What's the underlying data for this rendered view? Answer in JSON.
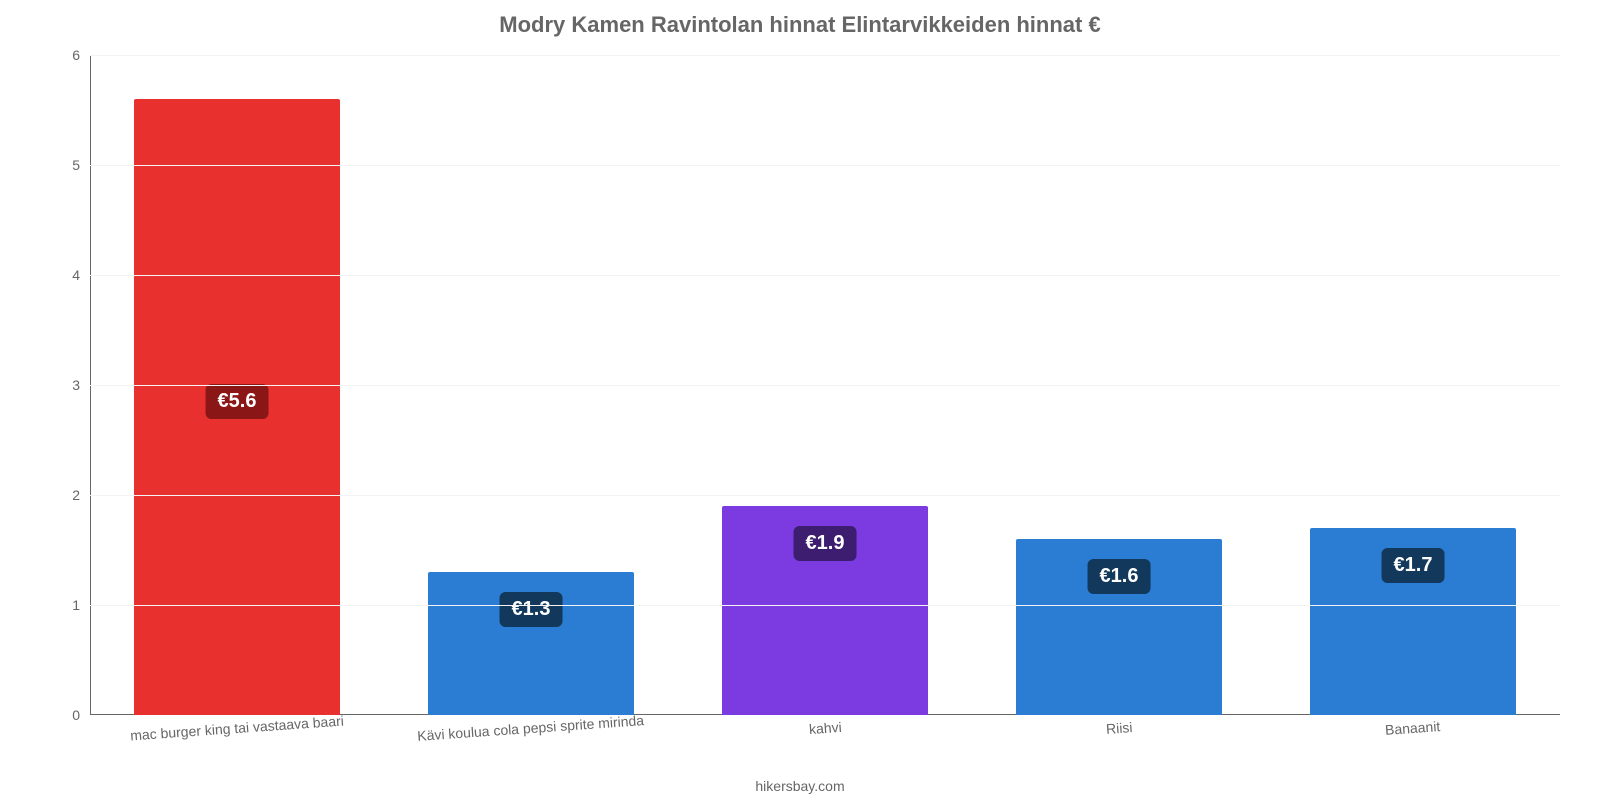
{
  "chart": {
    "type": "bar",
    "title": "Modry Kamen Ravintolan hinnat Elintarvikkeiden hinnat €",
    "title_fontsize": 22,
    "title_color": "#666666",
    "attribution": "hikersbay.com",
    "attribution_color": "#666666",
    "background_color": "#ffffff",
    "grid_color": "#f3f3f3",
    "axis_color": "#666666",
    "tick_color": "#666666",
    "ylim": [
      0,
      6
    ],
    "ytick_step": 1,
    "bar_width_pct": 70,
    "value_label_fontsize": 20,
    "value_label_bg": "#12385b",
    "value_label_bg_alt": "#8a1616",
    "x_label_color": "#666666",
    "categories": [
      "mac burger king tai vastaava baari",
      "Kävi koulua cola pepsi sprite mirinda",
      "kahvi",
      "Riisi",
      "Banaanit"
    ],
    "values": [
      5.6,
      1.3,
      1.9,
      1.6,
      1.7
    ],
    "value_labels": [
      "€5.6",
      "€1.3",
      "€1.9",
      "€1.6",
      "€1.7"
    ],
    "bar_colors": [
      "#e8302e",
      "#2b7cd3",
      "#7b3be0",
      "#2b7cd3",
      "#2b7cd3"
    ],
    "label_bg_colors": [
      "#8a1616",
      "#12385b",
      "#3c1d6f",
      "#12385b",
      "#12385b"
    ]
  }
}
